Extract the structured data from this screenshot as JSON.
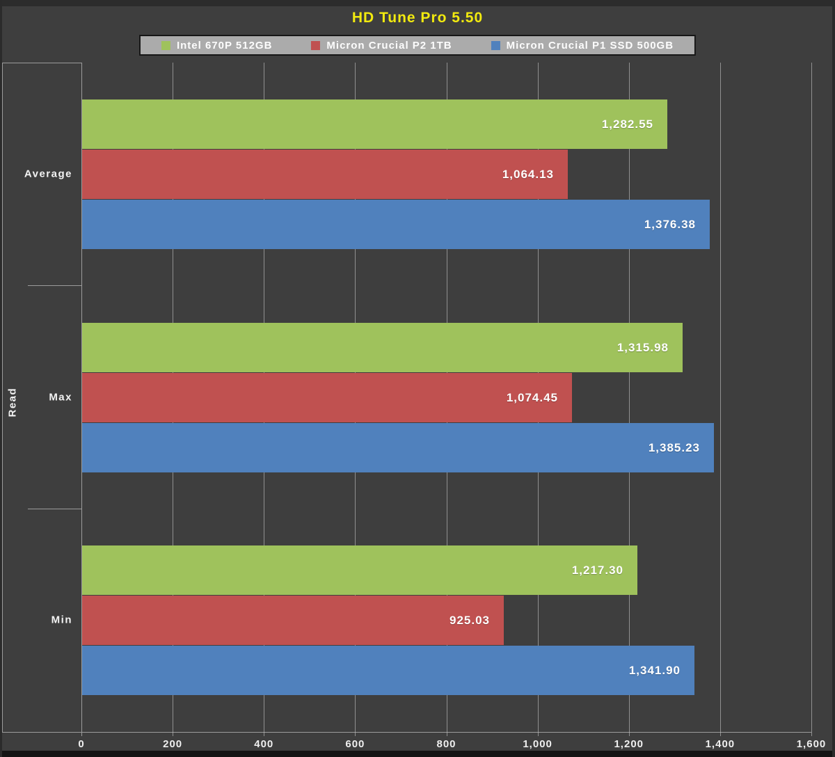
{
  "title": "HD Tune Pro 5.50",
  "colors": {
    "background": "#3e3e3e",
    "title": "#f2ea0f",
    "legend_background": "#ababab",
    "axis_line": "#9c9c9c",
    "text": "#ffffff",
    "series_green": "#9fc25c",
    "series_red": "#c05150",
    "series_blue": "#5081bd"
  },
  "chart_data": {
    "type": "bar",
    "orientation": "horizontal",
    "title": "HD Tune Pro 5.50",
    "xlabel": "",
    "ylabel": "Read",
    "categories": [
      "Average",
      "Max",
      "Min"
    ],
    "series": [
      {
        "name": "Intel 670P 512GB",
        "color": "#9fc25c",
        "values": [
          1282.55,
          1315.98,
          1217.3
        ],
        "labels": [
          "1,282.55",
          "1,315.98",
          "1,217.30"
        ]
      },
      {
        "name": "Micron Crucial P2 1TB",
        "color": "#c05150",
        "values": [
          1064.13,
          1074.45,
          925.03
        ],
        "labels": [
          "1,064.13",
          "1,074.45",
          "925.03"
        ]
      },
      {
        "name": "Micron Crucial P1 SSD 500GB",
        "color": "#5081bd",
        "values": [
          1376.38,
          1385.23,
          1341.9
        ],
        "labels": [
          "1,376.38",
          "1,385.23",
          "1,341.90"
        ]
      }
    ],
    "xlim": [
      0,
      1600
    ],
    "xticks": [
      0,
      200,
      400,
      600,
      800,
      1000,
      1200,
      1400,
      1600
    ],
    "xtick_labels": [
      "0",
      "200",
      "400",
      "600",
      "800",
      "1,000",
      "1,200",
      "1,400",
      "1,600"
    ],
    "grid": true,
    "legend_position": "top"
  }
}
